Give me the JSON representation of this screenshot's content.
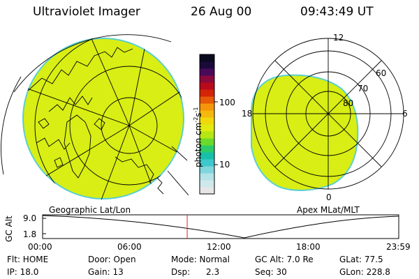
{
  "header": {
    "instrument": "Ultraviolet Imager",
    "date": "26 Aug 00",
    "time": "09:43:49  UT"
  },
  "geographic_panel": {
    "label": "Geographic Lat/Lon"
  },
  "apex_panel": {
    "label": "Apex MLat/MLT",
    "mlt_labels": {
      "top": "12",
      "left": "18",
      "right": "6",
      "bottom": "0"
    },
    "mlat_labels": [
      "60",
      "70",
      "80"
    ]
  },
  "colorbar": {
    "unit_label": "photon cm",
    "unit_exp1": "-2",
    "unit_s": "s",
    "unit_exp2": "-1",
    "tick_100": "100",
    "tick_10": "10",
    "colors": [
      "#e6e6e6",
      "#cfe8ec",
      "#b3e3e6",
      "#7fd6dc",
      "#3ec8cc",
      "#18c0a8",
      "#2ccc6a",
      "#6cda2a",
      "#b4e614",
      "#e0ea10",
      "#f0d80c",
      "#f5b80c",
      "#f5960a",
      "#e65a08",
      "#d42408",
      "#b80a1a",
      "#8a0a3c",
      "#4a0a5a",
      "#1a0a3a",
      "#0a0a1e"
    ]
  },
  "altitude_plot": {
    "ylabel": "GC Alt",
    "ytick_top": "9.0",
    "ytick_bottom": "1.8",
    "xticks": [
      "00:00",
      "06:00",
      "12:00",
      "18:00",
      "23:59"
    ],
    "current_time_fraction": 0.406
  },
  "info": {
    "flt": "Flt: HOME",
    "door": "Door: Open",
    "mode": "Mode: Normal",
    "gc_alt": "GC Alt: 7.0 Re",
    "glat": "GLat:  77.5",
    "ip": "IP: 18.0",
    "gain": "Gain: 13",
    "dsp": "Dsp:      2.3",
    "seq": "Seq: 30",
    "glon": "GLon: 228.8"
  },
  "colors": {
    "fill": "#d8ee14",
    "fill_edge": "#5ccfd0",
    "current_time_marker": "#e02020"
  }
}
